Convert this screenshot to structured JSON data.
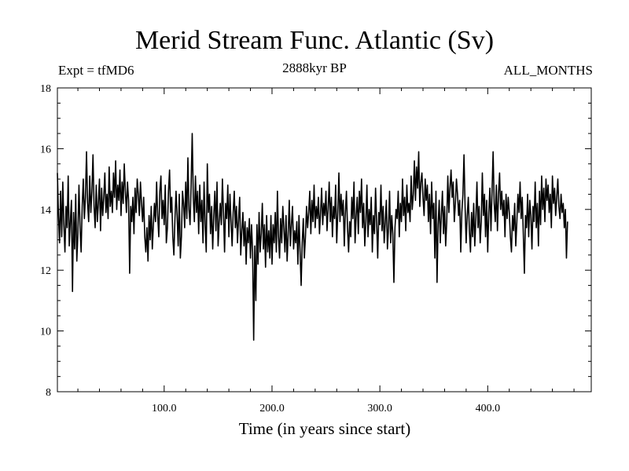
{
  "chart_data": {
    "type": "line",
    "title": "Merid Stream Func. Atlantic (Sv)",
    "subtitle_left": "Expt = tfMD6",
    "subtitle_center": "2888kyr BP",
    "subtitle_right": "ALL_MONTHS",
    "xlabel": "Time (in years since start)",
    "ylabel": "",
    "xlim": [
      1,
      496
    ],
    "ylim": [
      8,
      18
    ],
    "xticks": [
      100,
      200,
      300,
      400
    ],
    "xtick_labels": [
      "100.0",
      "200.0",
      "300.0",
      "400.0"
    ],
    "yticks": [
      8,
      10,
      12,
      14,
      16,
      18
    ],
    "ytick_labels": [
      "8",
      "10",
      "12",
      "14",
      "16",
      "18"
    ],
    "series": [
      {
        "name": "Atlantic meridional stream function",
        "x_start": 1,
        "x_step": 1,
        "values": [
          15.2,
          13.8,
          12.9,
          14.6,
          13.1,
          14.9,
          13.5,
          12.6,
          14.1,
          13.4,
          15.1,
          12.8,
          13.6,
          14.3,
          11.3,
          13.9,
          12.7,
          14.5,
          12.3,
          13.2,
          14.8,
          13.4,
          12.6,
          14.1,
          15.0,
          13.7,
          14.4,
          15.9,
          14.2,
          13.6,
          15.1,
          13.9,
          14.6,
          15.8,
          14.1,
          13.4,
          14.8,
          13.6,
          14.2,
          15.0,
          13.3,
          14.7,
          13.8,
          14.4,
          15.2,
          13.9,
          14.5,
          13.7,
          15.4,
          14.1,
          14.6,
          13.9,
          15.2,
          14.4,
          15.6,
          14.0,
          14.8,
          14.3,
          15.3,
          13.8,
          14.9,
          14.2,
          15.5,
          14.6,
          13.9,
          14.9,
          14.3,
          11.9,
          14.1,
          13.6,
          14.4,
          13.2,
          14.7,
          13.9,
          15.0,
          14.5,
          13.8,
          14.9,
          14.2,
          13.6,
          14.4,
          13.1,
          12.6,
          13.4,
          12.3,
          13.8,
          13.0,
          14.1,
          12.7,
          13.5,
          14.2,
          13.6,
          14.9,
          13.8,
          13.1,
          14.6,
          15.1,
          13.7,
          14.3,
          13.5,
          14.8,
          12.9,
          13.4,
          14.6,
          15.3,
          13.9,
          14.4,
          13.1,
          12.5,
          13.7,
          14.6,
          13.8,
          12.8,
          14.5,
          12.4,
          13.1,
          14.6,
          14.2,
          13.4,
          14.9,
          13.7,
          15.7,
          14.0,
          13.5,
          14.8,
          16.5,
          14.4,
          13.6,
          15.1,
          13.9,
          14.6,
          13.2,
          14.8,
          13.6,
          14.3,
          12.9,
          14.9,
          13.5,
          12.6,
          15.5,
          13.9,
          14.5,
          13.2,
          14.1,
          12.7,
          13.8,
          14.6,
          13.3,
          14.9,
          12.8,
          13.6,
          14.2,
          13.5,
          15.0,
          13.9,
          12.6,
          14.2,
          13.7,
          14.8,
          13.1,
          14.5,
          13.6,
          12.8,
          13.9,
          14.6,
          13.4,
          14.1,
          12.9,
          13.7,
          14.4,
          12.5,
          13.3,
          13.9,
          12.8,
          13.6,
          12.2,
          13.4,
          12.9,
          13.7,
          12.4,
          13.5,
          12.6,
          9.7,
          12.8,
          11.0,
          13.5,
          12.2,
          13.9,
          12.6,
          13.2,
          14.2,
          12.7,
          13.5,
          12.1,
          13.8,
          12.6,
          13.3,
          12.4,
          13.8,
          12.2,
          13.5,
          12.9,
          13.9,
          12.6,
          14.6,
          13.1,
          12.4,
          13.7,
          12.9,
          14.1,
          13.4,
          12.6,
          13.8,
          12.3,
          13.2,
          14.3,
          12.8,
          13.5,
          14.1,
          12.7,
          13.3,
          12.9,
          13.6,
          12.2,
          13.8,
          12.6,
          11.5,
          12.9,
          13.7,
          12.4,
          13.1,
          14.1,
          13.4,
          13.9,
          14.6,
          13.2,
          14.3,
          13.6,
          14.8,
          13.4,
          14.1,
          13.7,
          14.4,
          13.2,
          13.9,
          14.7,
          13.5,
          14.2,
          13.8,
          14.6,
          13.3,
          14.0,
          14.9,
          13.6,
          14.4,
          13.1,
          14.1,
          13.7,
          14.8,
          12.9,
          13.9,
          15.2,
          13.6,
          14.5,
          13.8,
          14.3,
          12.8,
          13.9,
          14.6,
          13.4,
          12.6,
          13.6,
          13.1,
          14.4,
          13.7,
          14.9,
          12.9,
          13.8,
          14.4,
          13.2,
          14.6,
          13.9,
          15.0,
          13.4,
          14.2,
          12.8,
          13.6,
          14.8,
          13.1,
          14.0,
          13.5,
          14.4,
          12.6,
          13.8,
          13.2,
          14.7,
          13.6,
          12.4,
          13.9,
          13.5,
          14.8,
          13.3,
          14.1,
          12.9,
          13.6,
          14.3,
          12.7,
          13.4,
          14.6,
          12.9,
          13.8,
          13.2,
          11.6,
          13.4,
          14.0,
          13.7,
          14.6,
          13.1,
          14.2,
          13.6,
          15.0,
          13.8,
          14.4,
          13.3,
          14.8,
          13.9,
          14.2,
          13.6,
          15.1,
          14.0,
          14.5,
          15.6,
          14.3,
          15.4,
          14.7,
          15.9,
          14.1,
          14.9,
          15.2,
          14.4,
          13.8,
          15.0,
          14.3,
          14.8,
          13.6,
          14.5,
          13.2,
          14.9,
          13.7,
          14.2,
          12.4,
          14.6,
          11.6,
          13.5,
          14.3,
          12.9,
          13.8,
          14.6,
          13.2,
          14.1,
          12.8,
          13.6,
          15.1,
          13.9,
          14.7,
          15.3,
          14.4,
          14.9,
          13.6,
          14.2,
          15.0,
          14.5,
          13.8,
          14.3,
          12.6,
          13.9,
          14.5,
          15.8,
          14.1,
          12.9,
          13.8,
          14.4,
          13.3,
          12.6,
          13.9,
          13.1,
          14.2,
          12.8,
          13.7,
          14.9,
          13.4,
          14.1,
          12.9,
          13.6,
          15.2,
          13.8,
          14.5,
          13.1,
          14.3,
          12.6,
          13.9,
          14.7,
          13.3,
          14.6,
          15.9,
          14.2,
          13.6,
          14.8,
          13.3,
          14.5,
          15.2,
          14.0,
          14.6,
          13.8,
          14.3,
          13.1,
          14.5,
          13.7,
          14.4,
          13.9,
          13.1,
          12.6,
          13.8,
          13.3,
          14.2,
          12.8,
          13.6,
          14.5,
          13.9,
          14.9,
          13.7,
          14.4,
          13.2,
          11.9,
          13.8,
          13.4,
          14.5,
          13.1,
          14.3,
          13.8,
          12.7,
          14.1,
          13.6,
          14.9,
          13.4,
          14.2,
          12.8,
          14.6,
          13.5,
          15.1,
          14.0,
          14.7,
          13.6,
          15.0,
          14.3,
          14.8,
          13.9,
          14.5,
          13.4,
          15.1,
          14.2,
          14.7,
          13.8,
          14.4,
          15.0,
          14.1,
          13.7,
          14.5,
          13.9,
          14.2,
          13.4,
          14.0,
          12.4,
          13.6
        ]
      }
    ]
  }
}
